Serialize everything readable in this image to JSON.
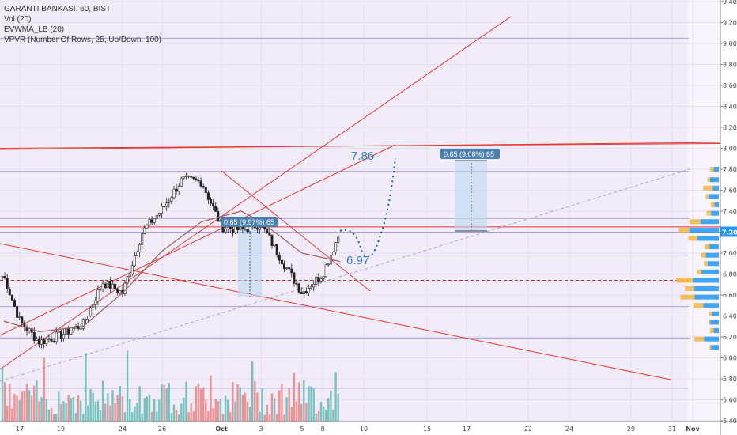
{
  "legend": {
    "symbol": "GARANTI BANKASI, 60, BIST",
    "vol": "Vol (20)",
    "evwma": "EVWMA_LB (20)",
    "vpvr": "VPVR (Number Of Rows, 25, Up/Down, 100)"
  },
  "annotations": {
    "target_high": "7.86",
    "target_low": "6.97",
    "measure_left": "0.65 (9.97%) 65",
    "measure_right": "0.65 (9.08%) 65",
    "price_tag": "7.20"
  },
  "colors": {
    "up": "#26a69a",
    "down": "#ef5350",
    "background": "#f1ecf7",
    "trendline": "#e53935",
    "evwma": "#9c5b5b",
    "annotation": "#2f7fc7"
  },
  "chart_data": {
    "type": "candlestick",
    "title": "GARANTI BANKASI, 60, BIST",
    "ylim": [
      5.38,
      9.42
    ],
    "y_ticks": [
      "5.40",
      "5.60",
      "5.80",
      "6.00",
      "6.20",
      "6.40",
      "6.60",
      "6.80",
      "7.00",
      "7.20",
      "7.40",
      "7.60",
      "7.80",
      "8.00",
      "8.20",
      "8.40",
      "8.60",
      "8.80",
      "9.00",
      "9.20",
      "9.40"
    ],
    "x_ticks": [
      "17",
      "19",
      "24",
      "26",
      "Oct",
      "3",
      "5",
      "8",
      "10",
      "15",
      "17",
      "22",
      "24",
      "29",
      "31",
      "Nov"
    ],
    "price_keypoints": [
      {
        "date": "Sep 16",
        "price": 6.78
      },
      {
        "date": "Sep 17",
        "price": 6.35
      },
      {
        "date": "Sep 18",
        "price": 6.15
      },
      {
        "date": "Sep 19",
        "price": 6.22
      },
      {
        "date": "Sep 20",
        "price": 6.32
      },
      {
        "date": "Sep 23",
        "price": 6.72
      },
      {
        "date": "Sep 24",
        "price": 6.62
      },
      {
        "date": "Sep 25",
        "price": 7.2
      },
      {
        "date": "Sep 26",
        "price": 7.42
      },
      {
        "date": "Sep 27",
        "price": 7.7
      },
      {
        "date": "Sep 30",
        "price": 7.68
      },
      {
        "date": "Oct 1",
        "price": 7.25
      },
      {
        "date": "Oct 2",
        "price": 7.22
      },
      {
        "date": "Oct 3",
        "price": 7.28
      },
      {
        "date": "Oct 4",
        "price": 6.95
      },
      {
        "date": "Oct 7",
        "price": 6.62
      },
      {
        "date": "Oct 8",
        "price": 6.8
      },
      {
        "date": "Oct 9",
        "price": 7.2
      }
    ],
    "evwma_series": [
      {
        "date": "Sep 16",
        "price": 6.35
      },
      {
        "date": "Sep 18",
        "price": 6.25
      },
      {
        "date": "Sep 20",
        "price": 6.3
      },
      {
        "date": "Sep 24",
        "price": 6.62
      },
      {
        "date": "Sep 26",
        "price": 7.02
      },
      {
        "date": "Sep 30",
        "price": 7.3
      },
      {
        "date": "Oct 2",
        "price": 7.4
      },
      {
        "date": "Oct 3",
        "price": 7.3
      },
      {
        "date": "Oct 7",
        "price": 7.0
      },
      {
        "date": "Oct 9",
        "price": 6.92
      }
    ],
    "horizontal_levels": [
      9.05,
      8.0,
      7.78,
      7.33,
      7.25,
      7.2,
      6.98,
      6.74,
      6.49,
      6.19,
      5.71
    ],
    "volume_profile": [
      {
        "price": 7.8,
        "up": 12,
        "down": 8
      },
      {
        "price": 7.7,
        "up": 20,
        "down": 6
      },
      {
        "price": 7.62,
        "up": 14,
        "down": 22
      },
      {
        "price": 7.54,
        "up": 24,
        "down": 6
      },
      {
        "price": 7.46,
        "up": 10,
        "down": 8
      },
      {
        "price": 7.38,
        "up": 18,
        "down": 10
      },
      {
        "price": 7.3,
        "up": 42,
        "down": 26
      },
      {
        "price": 7.22,
        "up": 68,
        "down": 24
      },
      {
        "price": 7.14,
        "up": 50,
        "down": 20
      },
      {
        "price": 7.06,
        "up": 22,
        "down": 10
      },
      {
        "price": 6.98,
        "up": 30,
        "down": 10
      },
      {
        "price": 6.9,
        "up": 26,
        "down": 8
      },
      {
        "price": 6.82,
        "up": 40,
        "down": 10
      },
      {
        "price": 6.74,
        "up": 60,
        "down": 38
      },
      {
        "price": 6.66,
        "up": 58,
        "down": 20
      },
      {
        "price": 6.58,
        "up": 56,
        "down": 32
      },
      {
        "price": 6.5,
        "up": 36,
        "down": 22
      },
      {
        "price": 6.42,
        "up": 16,
        "down": 6
      },
      {
        "price": 6.34,
        "up": 20,
        "down": 4
      },
      {
        "price": 6.26,
        "up": 12,
        "down": 8
      },
      {
        "price": 6.18,
        "up": 34,
        "down": 22
      },
      {
        "price": 6.1,
        "up": 18,
        "down": 4
      }
    ]
  }
}
